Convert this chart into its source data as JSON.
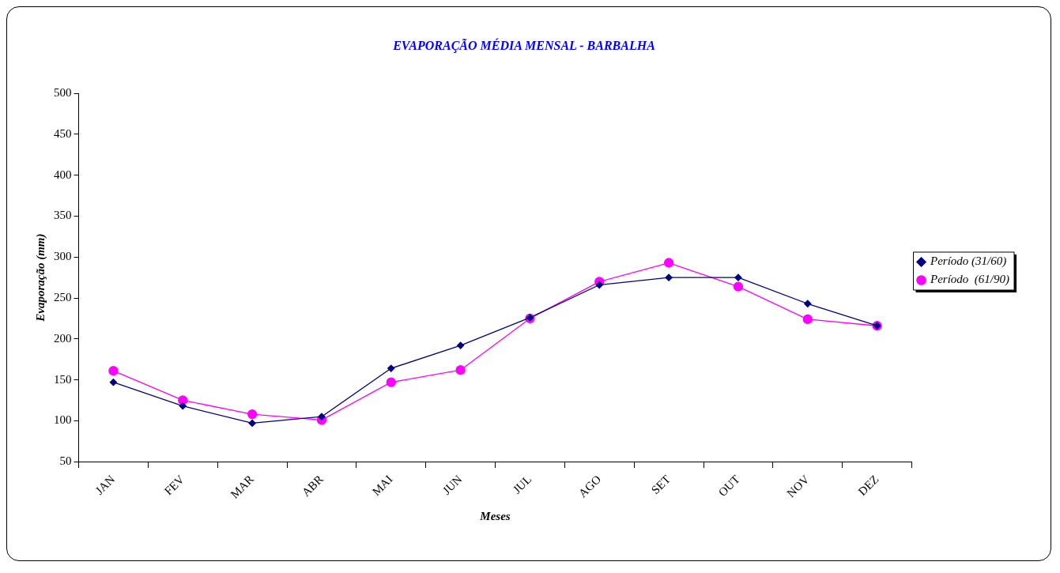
{
  "chart_data": {
    "type": "line",
    "title": "EVAPORAÇÃO MÉDIA MENSAL - BARBALHA",
    "xlabel": "Meses",
    "ylabel": "Evaporação (mm)",
    "categories": [
      "JAN",
      "FEV",
      "MAR",
      "ABR",
      "MAI",
      "JUN",
      "JUL",
      "AGO",
      "SET",
      "OUT",
      "NOV",
      "DEZ"
    ],
    "series": [
      {
        "name": "Período (31/60)",
        "color": "#000080",
        "marker": "diamond",
        "values": [
          147,
          118,
          97,
          105,
          164,
          192,
          226,
          266,
          275,
          275,
          243,
          216
        ]
      },
      {
        "name": "Período  (61/90)",
        "color": "#ff00ff",
        "marker": "circle",
        "values": [
          161,
          125,
          108,
          101,
          147,
          162,
          225,
          270,
          293,
          264,
          224,
          216
        ]
      }
    ],
    "ylim": [
      50,
      500
    ],
    "yticks": [
      50,
      100,
      150,
      200,
      250,
      300,
      350,
      400,
      450,
      500
    ],
    "grid": false,
    "legend": "right",
    "line_style": "solid"
  }
}
